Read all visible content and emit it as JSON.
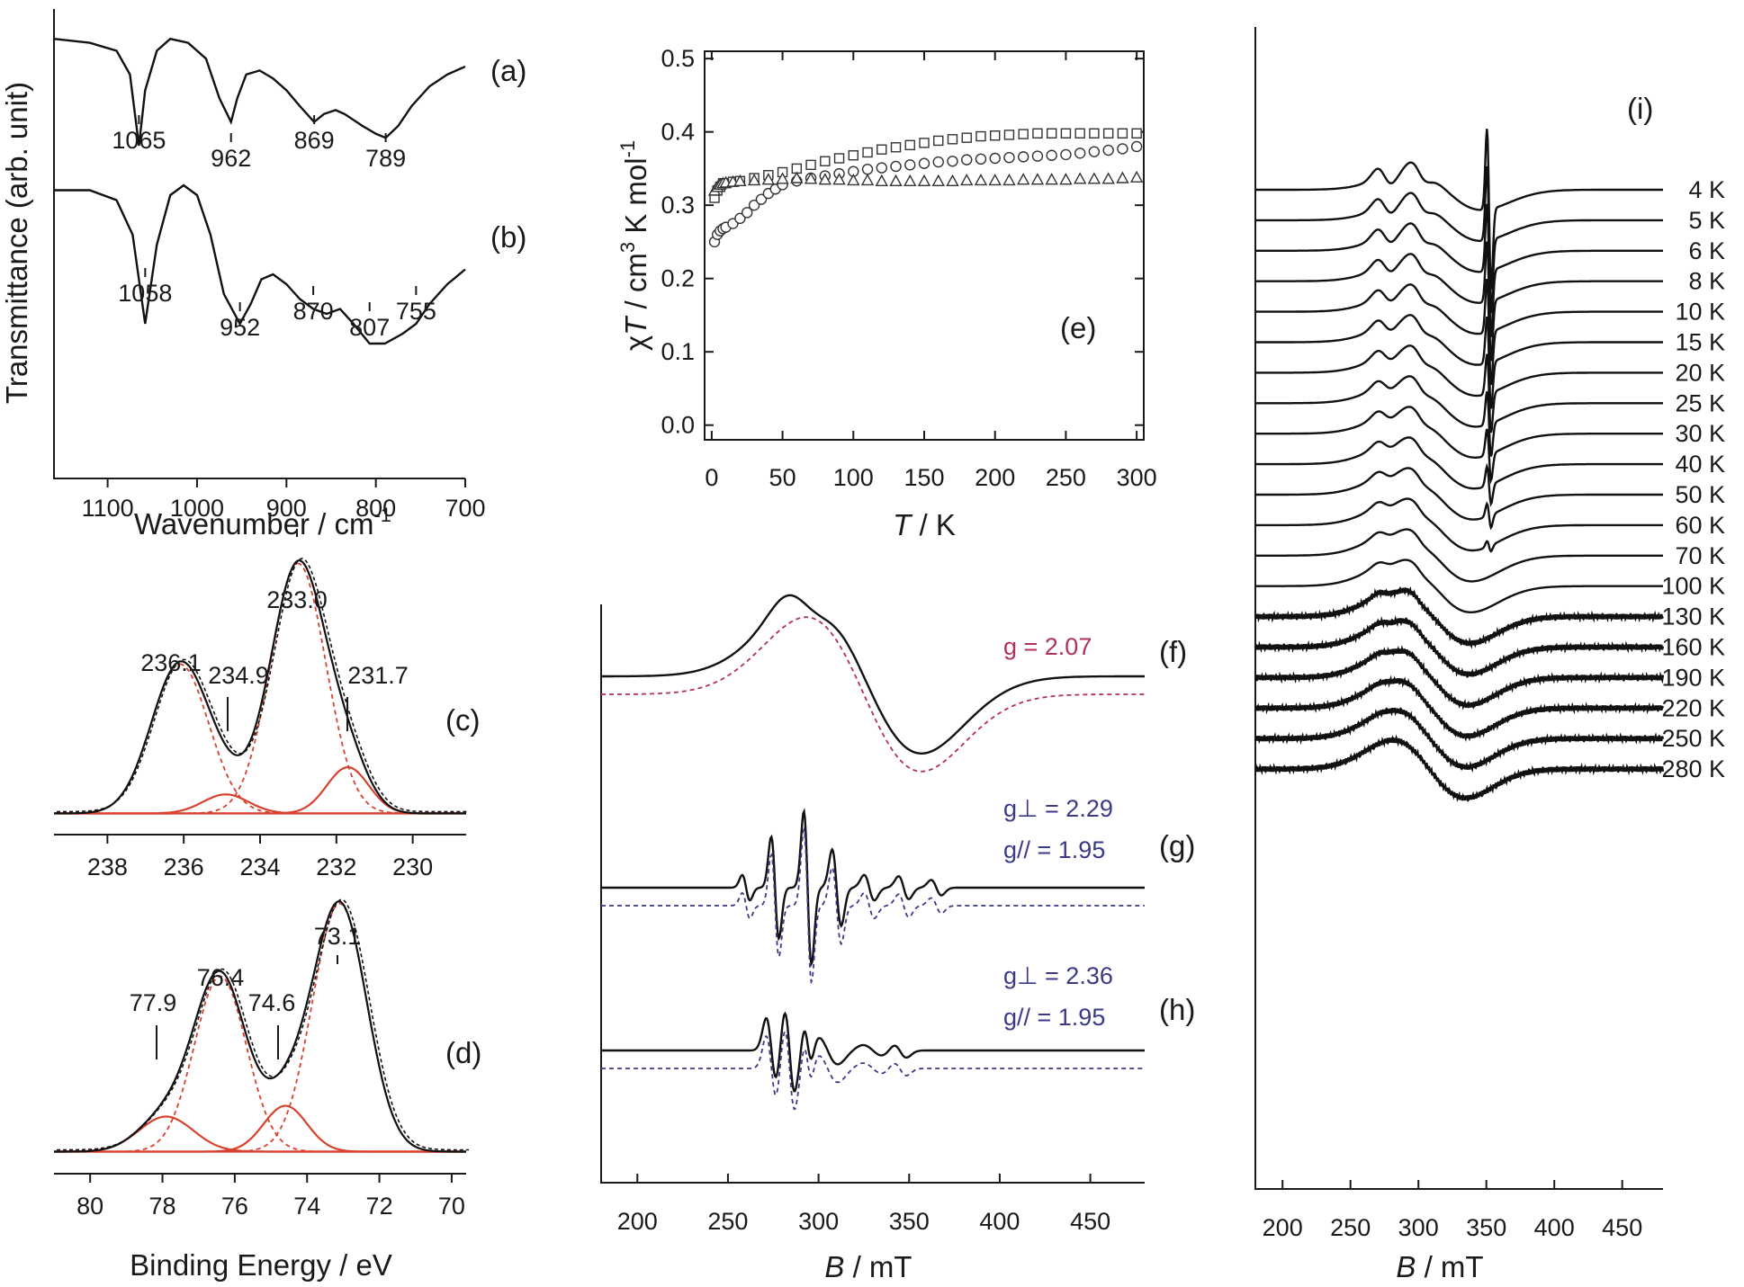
{
  "chart_data": [
    {
      "panel": "IR",
      "type": "line",
      "xlabel": "Wavenumber / cm",
      "xlabel_sup": "-1",
      "ylabel": "Transmittance (arb. unit)",
      "xlim": [
        1160,
        700
      ],
      "xticks": [
        1100,
        1000,
        900,
        800,
        700
      ],
      "series": [
        {
          "name": "(a)",
          "x": [
            1160,
            1120,
            1090,
            1075,
            1065,
            1058,
            1045,
            1030,
            1010,
            990,
            975,
            962,
            955,
            945,
            930,
            915,
            900,
            885,
            869,
            858,
            845,
            835,
            815,
            800,
            789,
            775,
            760,
            740,
            720,
            700
          ],
          "y": [
            0.97,
            0.96,
            0.94,
            0.88,
            0.7,
            0.84,
            0.94,
            0.97,
            0.96,
            0.92,
            0.82,
            0.76,
            0.82,
            0.88,
            0.89,
            0.87,
            0.84,
            0.8,
            0.76,
            0.78,
            0.79,
            0.78,
            0.75,
            0.73,
            0.72,
            0.75,
            0.8,
            0.85,
            0.88,
            0.9
          ],
          "peaks": [
            "1065",
            "962",
            "869",
            "789"
          ]
        },
        {
          "name": "(b)",
          "x": [
            1160,
            1120,
            1090,
            1072,
            1058,
            1045,
            1030,
            1015,
            1000,
            985,
            970,
            952,
            940,
            928,
            915,
            900,
            885,
            870,
            855,
            840,
            825,
            807,
            790,
            770,
            755,
            740,
            720,
            700
          ],
          "y": [
            0.97,
            0.97,
            0.95,
            0.88,
            0.7,
            0.86,
            0.96,
            0.98,
            0.96,
            0.88,
            0.76,
            0.7,
            0.74,
            0.79,
            0.8,
            0.78,
            0.75,
            0.73,
            0.72,
            0.73,
            0.7,
            0.66,
            0.66,
            0.68,
            0.7,
            0.74,
            0.78,
            0.81
          ],
          "peaks": [
            "1058",
            "952",
            "870",
            "807",
            "755"
          ]
        }
      ]
    },
    {
      "panel": "(e)",
      "type": "scatter",
      "xlabel": "T / K",
      "ylabel": "χT / cm³ K mol⁻¹",
      "xlim": [
        -5,
        305
      ],
      "ylim": [
        -0.02,
        0.51
      ],
      "xticks": [
        0,
        50,
        100,
        150,
        200,
        250,
        300
      ],
      "yticks": [
        0.0,
        0.1,
        0.2,
        0.3,
        0.4,
        0.5
      ],
      "series": [
        {
          "marker": "square",
          "x": [
            2,
            4,
            6,
            8,
            10,
            15,
            20,
            30,
            40,
            50,
            60,
            70,
            80,
            90,
            100,
            110,
            120,
            130,
            140,
            150,
            160,
            170,
            180,
            190,
            200,
            210,
            220,
            230,
            240,
            250,
            260,
            270,
            280,
            290,
            300
          ],
          "y": [
            0.31,
            0.32,
            0.325,
            0.33,
            0.33,
            0.332,
            0.333,
            0.337,
            0.341,
            0.345,
            0.35,
            0.355,
            0.36,
            0.364,
            0.368,
            0.372,
            0.376,
            0.379,
            0.382,
            0.385,
            0.388,
            0.39,
            0.392,
            0.394,
            0.395,
            0.396,
            0.397,
            0.398,
            0.398,
            0.398,
            0.398,
            0.398,
            0.398,
            0.398,
            0.398
          ]
        },
        {
          "marker": "circle",
          "x": [
            2,
            4,
            6,
            8,
            10,
            15,
            20,
            25,
            30,
            35,
            40,
            45,
            50,
            60,
            70,
            80,
            90,
            100,
            110,
            120,
            130,
            140,
            150,
            160,
            170,
            180,
            190,
            200,
            210,
            220,
            230,
            240,
            250,
            260,
            270,
            280,
            290,
            300
          ],
          "y": [
            0.25,
            0.26,
            0.265,
            0.268,
            0.27,
            0.275,
            0.282,
            0.29,
            0.3,
            0.308,
            0.316,
            0.322,
            0.328,
            0.333,
            0.337,
            0.34,
            0.343,
            0.346,
            0.349,
            0.351,
            0.353,
            0.355,
            0.357,
            0.359,
            0.36,
            0.362,
            0.363,
            0.364,
            0.365,
            0.366,
            0.367,
            0.368,
            0.369,
            0.371,
            0.373,
            0.375,
            0.377,
            0.38
          ]
        },
        {
          "marker": "triangle",
          "x": [
            2,
            4,
            6,
            8,
            10,
            15,
            20,
            30,
            40,
            50,
            60,
            70,
            80,
            90,
            100,
            110,
            120,
            130,
            140,
            150,
            160,
            170,
            180,
            190,
            200,
            210,
            220,
            230,
            240,
            250,
            260,
            270,
            280,
            290,
            300
          ],
          "y": [
            0.32,
            0.325,
            0.328,
            0.33,
            0.331,
            0.332,
            0.333,
            0.334,
            0.335,
            0.336,
            0.337,
            0.336,
            0.335,
            0.335,
            0.334,
            0.334,
            0.333,
            0.333,
            0.333,
            0.333,
            0.333,
            0.333,
            0.334,
            0.334,
            0.334,
            0.334,
            0.335,
            0.335,
            0.335,
            0.335,
            0.336,
            0.336,
            0.336,
            0.337,
            0.338
          ]
        }
      ]
    },
    {
      "panel": "(c)",
      "type": "line",
      "xlim": [
        239.4,
        228.6
      ],
      "xticks": [
        238,
        236,
        234,
        232,
        230
      ],
      "peaks": [
        {
          "label": "236.1",
          "center": 236.1,
          "height": 0.55,
          "width": 0.75
        },
        {
          "label": "234.9",
          "center": 234.9,
          "height": 0.07,
          "width": 0.6
        },
        {
          "label": "233.0",
          "center": 233.0,
          "height": 0.92,
          "width": 0.72
        },
        {
          "label": "231.7",
          "center": 231.7,
          "height": 0.17,
          "width": 0.55
        }
      ]
    },
    {
      "panel": "(d)",
      "type": "line",
      "xlabel": "Binding Energy / eV",
      "xlim": [
        81,
        69.6
      ],
      "xticks": [
        80,
        78,
        76,
        74,
        72,
        70
      ],
      "peaks": [
        {
          "label": "77.9",
          "center": 77.9,
          "height": 0.13,
          "width": 0.75
        },
        {
          "label": "76.4",
          "center": 76.4,
          "height": 0.65,
          "width": 0.72
        },
        {
          "label": "74.6",
          "center": 74.6,
          "height": 0.17,
          "width": 0.6
        },
        {
          "label": "73.1",
          "center": 73.1,
          "height": 0.92,
          "width": 0.75
        }
      ]
    },
    {
      "panel": "EPR (f)(g)(h)",
      "type": "line",
      "xlabel": "B / mT",
      "xlim": [
        180,
        480
      ],
      "xticks": [
        200,
        250,
        300,
        350,
        400,
        450
      ],
      "labels": [
        {
          "panel": "(f)",
          "fit_color": "#b03060",
          "lines": [
            "g = 2.07"
          ]
        },
        {
          "panel": "(g)",
          "fit_color": "#3a3a88",
          "lines": [
            "g⊥ = 2.29",
            "g// = 1.95"
          ]
        },
        {
          "panel": "(h)",
          "fit_color": "#3a3a88",
          "lines": [
            "g⊥ = 2.36",
            "g// = 1.95"
          ]
        }
      ]
    },
    {
      "panel": "(i)",
      "type": "line",
      "xlabel": "B / mT",
      "xlim": [
        180,
        480
      ],
      "xticks": [
        200,
        250,
        300,
        350,
        400,
        450
      ],
      "temperatures": [
        "4 K",
        "5 K",
        "6 K",
        "8 K",
        "10 K",
        "15 K",
        "20 K",
        "25 K",
        "30 K",
        "40 K",
        "50 K",
        "60 K",
        "70 K",
        "100 K",
        "130 K",
        "160 K",
        "190 K",
        "220 K",
        "250 K",
        "280 K"
      ]
    }
  ],
  "text": {
    "ir_ylabel": "Transmittance (arb. unit)",
    "ir_xlabel": "Wavenumber / cm",
    "ir_xlabel_sup": "-1",
    "e_ylabel_a": "χ",
    "e_ylabel_b": "T",
    "e_ylabel_c": " / cm",
    "e_ylabel_sup1": "3",
    "e_ylabel_d": " K mol",
    "e_ylabel_sup2": "-1",
    "e_xlabel_a": "T",
    "e_xlabel_b": " / K",
    "xps_xlabel": "Binding Energy / eV",
    "b_xlabel_a": "B",
    "b_xlabel_b": " / mT",
    "panel_a": "(a)",
    "panel_b": "(b)",
    "panel_c": "(c)",
    "panel_d": "(d)",
    "panel_e": "(e)",
    "panel_f": "(f)",
    "panel_g": "(g)",
    "panel_h": "(h)",
    "panel_i": "(i)",
    "f_g": "g = 2.07",
    "g_gperp": "g⊥ = 2.29",
    "g_gpar": "g// = 1.95",
    "h_gperp": "g⊥ = 2.36",
    "h_gpar": "g// = 1.95"
  }
}
